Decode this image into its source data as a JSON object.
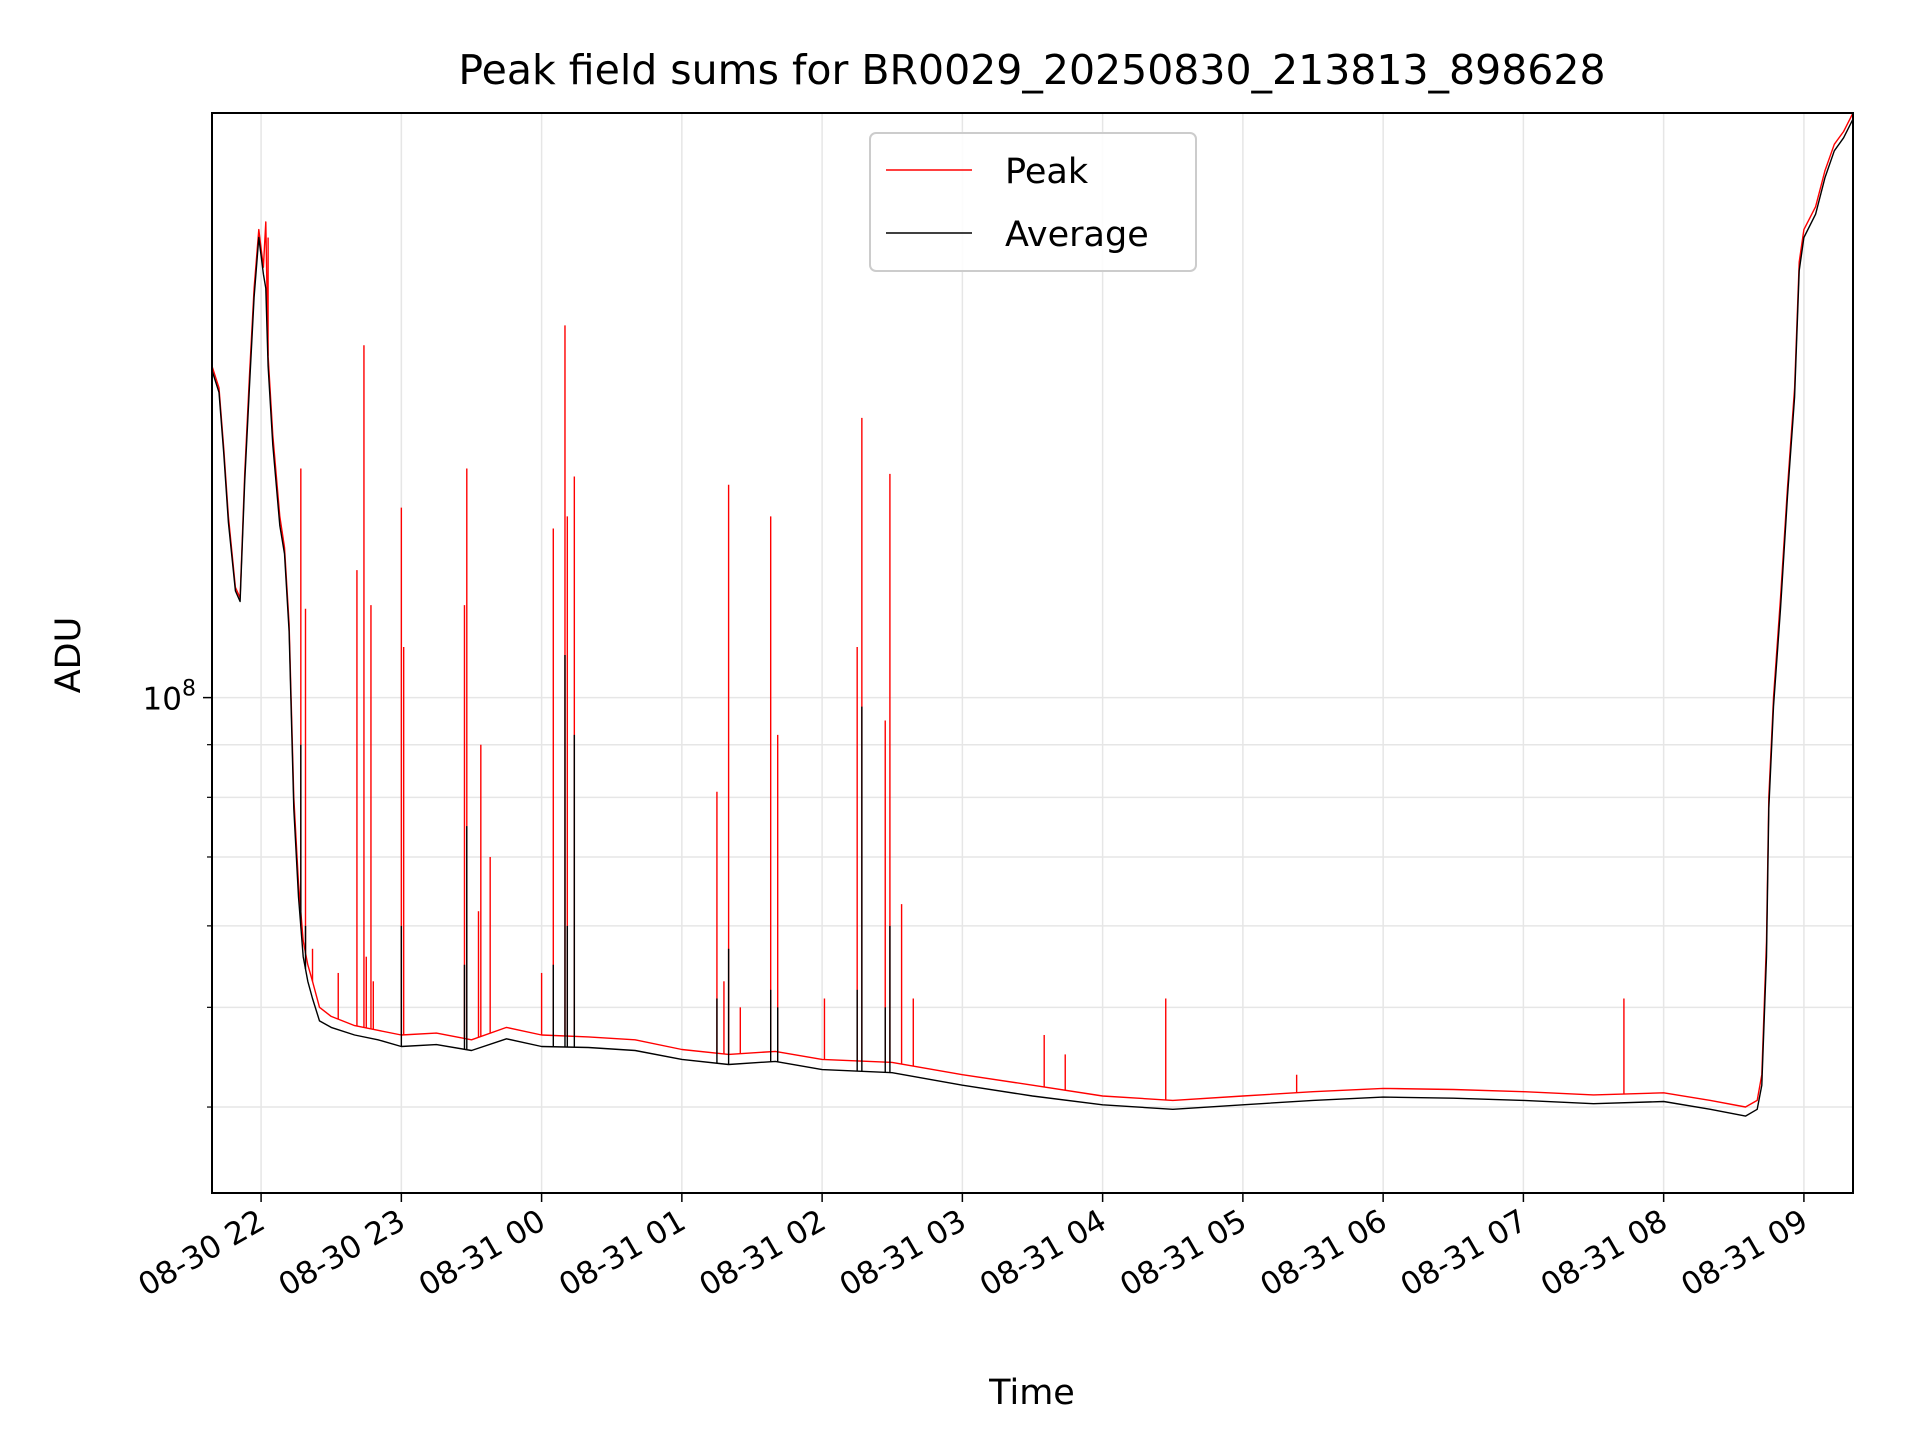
{
  "chart_data": {
    "type": "line",
    "title": "Peak field sums for BR0029_20250830_213813_898628",
    "xlabel": "Time",
    "ylabel": "ADU",
    "y_scale": "log",
    "ylim": [
      33000000,
      370000000
    ],
    "xlim": [
      "2025-08-30 21:39",
      "2025-08-31 09:21"
    ],
    "x_ticks": [
      "08-30 22",
      "08-30 23",
      "08-31 00",
      "08-31 01",
      "08-31 02",
      "08-31 03",
      "08-31 04",
      "08-31 05",
      "08-31 06",
      "08-31 07",
      "08-31 08",
      "08-31 09"
    ],
    "y_ticks": [
      {
        "value": 100000000,
        "label_base": "10",
        "label_exp": "8"
      }
    ],
    "y_minor_ticks": [
      40000000,
      50000000,
      60000000,
      70000000,
      80000000,
      90000000
    ],
    "grid": true,
    "legend_position": "top-center",
    "colors": {
      "peak": "#ff0000",
      "average": "#000000"
    },
    "series": [
      {
        "name": "Peak",
        "points": [
          [
            "2025-08-30 21:39",
            210000000
          ],
          [
            "2025-08-30 21:42",
            200000000
          ],
          [
            "2025-08-30 21:44",
            175000000
          ],
          [
            "2025-08-30 21:46",
            150000000
          ],
          [
            "2025-08-30 21:49",
            128000000
          ],
          [
            "2025-08-30 21:51",
            125000000
          ],
          [
            "2025-08-30 21:53",
            165000000
          ],
          [
            "2025-08-30 21:55",
            205000000
          ],
          [
            "2025-08-30 21:57",
            250000000
          ],
          [
            "2025-08-30 21:59",
            285000000
          ],
          [
            "2025-08-30 22:01",
            262000000
          ],
          [
            "2025-08-30 22:02",
            290000000
          ],
          [
            "2025-08-30 22:03",
            215000000
          ],
          [
            "2025-08-30 22:05",
            180000000
          ],
          [
            "2025-08-30 22:08",
            150000000
          ],
          [
            "2025-08-30 22:10",
            140000000
          ],
          [
            "2025-08-30 22:12",
            118000000
          ],
          [
            "2025-08-30 22:14",
            80000000
          ],
          [
            "2025-08-30 22:16",
            66000000
          ],
          [
            "2025-08-30 22:18",
            58000000
          ],
          [
            "2025-08-30 22:20",
            55000000
          ],
          [
            "2025-08-30 22:22",
            53000000
          ],
          [
            "2025-08-30 22:25",
            50000000
          ],
          [
            "2025-08-30 22:30",
            49000000
          ],
          [
            "2025-08-30 22:40",
            48000000
          ],
          [
            "2025-08-30 22:50",
            47500000
          ],
          [
            "2025-08-30 23:00",
            47000000
          ],
          [
            "2025-08-30 23:15",
            47200000
          ],
          [
            "2025-08-30 23:30",
            46500000
          ],
          [
            "2025-08-30 23:45",
            47800000
          ],
          [
            "2025-08-31 00:00",
            47000000
          ],
          [
            "2025-08-31 00:20",
            46800000
          ],
          [
            "2025-08-31 00:40",
            46500000
          ],
          [
            "2025-08-31 01:00",
            45500000
          ],
          [
            "2025-08-31 01:20",
            45000000
          ],
          [
            "2025-08-31 01:40",
            45300000
          ],
          [
            "2025-08-31 02:00",
            44500000
          ],
          [
            "2025-08-31 02:30",
            44200000
          ],
          [
            "2025-08-31 03:00",
            43000000
          ],
          [
            "2025-08-31 03:30",
            42000000
          ],
          [
            "2025-08-31 04:00",
            41000000
          ],
          [
            "2025-08-31 04:30",
            40600000
          ],
          [
            "2025-08-31 05:00",
            41000000
          ],
          [
            "2025-08-31 05:30",
            41400000
          ],
          [
            "2025-08-31 06:00",
            41700000
          ],
          [
            "2025-08-31 06:30",
            41600000
          ],
          [
            "2025-08-31 07:00",
            41400000
          ],
          [
            "2025-08-31 07:30",
            41100000
          ],
          [
            "2025-08-31 08:00",
            41300000
          ],
          [
            "2025-08-31 08:20",
            40600000
          ],
          [
            "2025-08-31 08:35",
            40000000
          ],
          [
            "2025-08-31 08:40",
            40600000
          ],
          [
            "2025-08-31 08:42",
            43000000
          ],
          [
            "2025-08-31 08:44",
            58000000
          ],
          [
            "2025-08-31 08:45",
            80000000
          ],
          [
            "2025-08-31 08:47",
            100000000
          ],
          [
            "2025-08-31 08:50",
            125000000
          ],
          [
            "2025-08-31 08:53",
            160000000
          ],
          [
            "2025-08-31 08:56",
            200000000
          ],
          [
            "2025-08-31 08:58",
            265000000
          ],
          [
            "2025-08-31 09:00",
            285000000
          ],
          [
            "2025-08-31 09:05",
            300000000
          ],
          [
            "2025-08-31 09:09",
            325000000
          ],
          [
            "2025-08-31 09:13",
            345000000
          ],
          [
            "2025-08-31 09:17",
            355000000
          ],
          [
            "2025-08-31 09:21",
            370000000
          ]
        ],
        "spikes": [
          [
            "2025-08-30 22:03",
            280000000
          ],
          [
            "2025-08-30 22:17",
            167000000
          ],
          [
            "2025-08-30 22:19",
            122000000
          ],
          [
            "2025-08-30 22:22",
            57000000
          ],
          [
            "2025-08-30 22:33",
            54000000
          ],
          [
            "2025-08-30 22:41",
            133000000
          ],
          [
            "2025-08-30 22:44",
            220000000
          ],
          [
            "2025-08-30 22:45",
            56000000
          ],
          [
            "2025-08-30 22:47",
            123000000
          ],
          [
            "2025-08-30 22:48",
            53000000
          ],
          [
            "2025-08-30 23:00",
            153000000
          ],
          [
            "2025-08-30 23:01",
            112000000
          ],
          [
            "2025-08-30 23:27",
            123000000
          ],
          [
            "2025-08-30 23:28",
            167000000
          ],
          [
            "2025-08-30 23:33",
            62000000
          ],
          [
            "2025-08-30 23:34",
            90000000
          ],
          [
            "2025-08-30 23:38",
            70000000
          ],
          [
            "2025-08-31 00:00",
            54000000
          ],
          [
            "2025-08-31 00:05",
            146000000
          ],
          [
            "2025-08-31 00:10",
            230000000
          ],
          [
            "2025-08-31 00:11",
            150000000
          ],
          [
            "2025-08-31 00:14",
            164000000
          ],
          [
            "2025-08-31 01:15",
            81000000
          ],
          [
            "2025-08-31 01:18",
            53000000
          ],
          [
            "2025-08-31 01:20",
            161000000
          ],
          [
            "2025-08-31 01:25",
            50000000
          ],
          [
            "2025-08-31 01:38",
            150000000
          ],
          [
            "2025-08-31 01:41",
            92000000
          ],
          [
            "2025-08-31 02:01",
            51000000
          ],
          [
            "2025-08-31 02:15",
            112000000
          ],
          [
            "2025-08-31 02:17",
            187000000
          ],
          [
            "2025-08-31 02:27",
            95000000
          ],
          [
            "2025-08-31 02:29",
            165000000
          ],
          [
            "2025-08-31 02:34",
            63000000
          ],
          [
            "2025-08-31 02:39",
            51000000
          ],
          [
            "2025-08-31 03:35",
            47000000
          ],
          [
            "2025-08-31 03:44",
            45000000
          ],
          [
            "2025-08-31 04:27",
            51000000
          ],
          [
            "2025-08-31 05:23",
            43000000
          ],
          [
            "2025-08-31 07:43",
            51000000
          ]
        ]
      },
      {
        "name": "Average",
        "points": [
          [
            "2025-08-30 21:39",
            208000000
          ],
          [
            "2025-08-30 21:42",
            198000000
          ],
          [
            "2025-08-30 21:44",
            173000000
          ],
          [
            "2025-08-30 21:46",
            148000000
          ],
          [
            "2025-08-30 21:49",
            127000000
          ],
          [
            "2025-08-30 21:51",
            124000000
          ],
          [
            "2025-08-30 21:53",
            162000000
          ],
          [
            "2025-08-30 21:55",
            200000000
          ],
          [
            "2025-08-30 21:57",
            245000000
          ],
          [
            "2025-08-30 21:59",
            280000000
          ],
          [
            "2025-08-30 22:01",
            258000000
          ],
          [
            "2025-08-30 22:02",
            250000000
          ],
          [
            "2025-08-30 22:03",
            210000000
          ],
          [
            "2025-08-30 22:05",
            176000000
          ],
          [
            "2025-08-30 22:08",
            147000000
          ],
          [
            "2025-08-30 22:10",
            138000000
          ],
          [
            "2025-08-30 22:12",
            116000000
          ],
          [
            "2025-08-30 22:14",
            78000000
          ],
          [
            "2025-08-30 22:16",
            64000000
          ],
          [
            "2025-08-30 22:18",
            56000000
          ],
          [
            "2025-08-30 22:20",
            53000000
          ],
          [
            "2025-08-30 22:22",
            51000000
          ],
          [
            "2025-08-30 22:25",
            48500000
          ],
          [
            "2025-08-30 22:30",
            47800000
          ],
          [
            "2025-08-30 22:40",
            47000000
          ],
          [
            "2025-08-30 22:50",
            46500000
          ],
          [
            "2025-08-30 23:00",
            45800000
          ],
          [
            "2025-08-30 23:15",
            46000000
          ],
          [
            "2025-08-30 23:30",
            45400000
          ],
          [
            "2025-08-30 23:45",
            46600000
          ],
          [
            "2025-08-31 00:00",
            45800000
          ],
          [
            "2025-08-31 00:20",
            45700000
          ],
          [
            "2025-08-31 00:40",
            45400000
          ],
          [
            "2025-08-31 01:00",
            44500000
          ],
          [
            "2025-08-31 01:20",
            44000000
          ],
          [
            "2025-08-31 01:40",
            44300000
          ],
          [
            "2025-08-31 02:00",
            43500000
          ],
          [
            "2025-08-31 02:30",
            43200000
          ],
          [
            "2025-08-31 03:00",
            42000000
          ],
          [
            "2025-08-31 03:30",
            41000000
          ],
          [
            "2025-08-31 04:00",
            40200000
          ],
          [
            "2025-08-31 04:30",
            39800000
          ],
          [
            "2025-08-31 05:00",
            40200000
          ],
          [
            "2025-08-31 05:30",
            40600000
          ],
          [
            "2025-08-31 06:00",
            40900000
          ],
          [
            "2025-08-31 06:30",
            40800000
          ],
          [
            "2025-08-31 07:00",
            40600000
          ],
          [
            "2025-08-31 07:30",
            40300000
          ],
          [
            "2025-08-31 08:00",
            40500000
          ],
          [
            "2025-08-31 08:20",
            39800000
          ],
          [
            "2025-08-31 08:35",
            39200000
          ],
          [
            "2025-08-31 08:40",
            39800000
          ],
          [
            "2025-08-31 08:42",
            42000000
          ],
          [
            "2025-08-31 08:44",
            56000000
          ],
          [
            "2025-08-31 08:45",
            78000000
          ],
          [
            "2025-08-31 08:47",
            98000000
          ],
          [
            "2025-08-31 08:50",
            122000000
          ],
          [
            "2025-08-31 08:53",
            157000000
          ],
          [
            "2025-08-31 08:56",
            196000000
          ],
          [
            "2025-08-31 08:58",
            260000000
          ],
          [
            "2025-08-31 09:00",
            280000000
          ],
          [
            "2025-08-31 09:05",
            295000000
          ],
          [
            "2025-08-31 09:09",
            320000000
          ],
          [
            "2025-08-31 09:13",
            340000000
          ],
          [
            "2025-08-31 09:17",
            350000000
          ],
          [
            "2025-08-31 09:21",
            365000000
          ]
        ],
        "spikes": [
          [
            "2025-08-30 22:17",
            90000000
          ],
          [
            "2025-08-30 22:19",
            60000000
          ],
          [
            "2025-08-30 23:00",
            60000000
          ],
          [
            "2025-08-30 23:28",
            75000000
          ],
          [
            "2025-08-30 23:27",
            55000000
          ],
          [
            "2025-08-31 00:05",
            55000000
          ],
          [
            "2025-08-31 00:10",
            110000000
          ],
          [
            "2025-08-31 00:11",
            60000000
          ],
          [
            "2025-08-31 00:14",
            92000000
          ],
          [
            "2025-08-31 01:15",
            51000000
          ],
          [
            "2025-08-31 01:20",
            57000000
          ],
          [
            "2025-08-31 01:38",
            52000000
          ],
          [
            "2025-08-31 01:41",
            50000000
          ],
          [
            "2025-08-31 02:15",
            52000000
          ],
          [
            "2025-08-31 02:17",
            98000000
          ],
          [
            "2025-08-31 02:27",
            50000000
          ],
          [
            "2025-08-31 02:29",
            60000000
          ]
        ]
      }
    ]
  }
}
